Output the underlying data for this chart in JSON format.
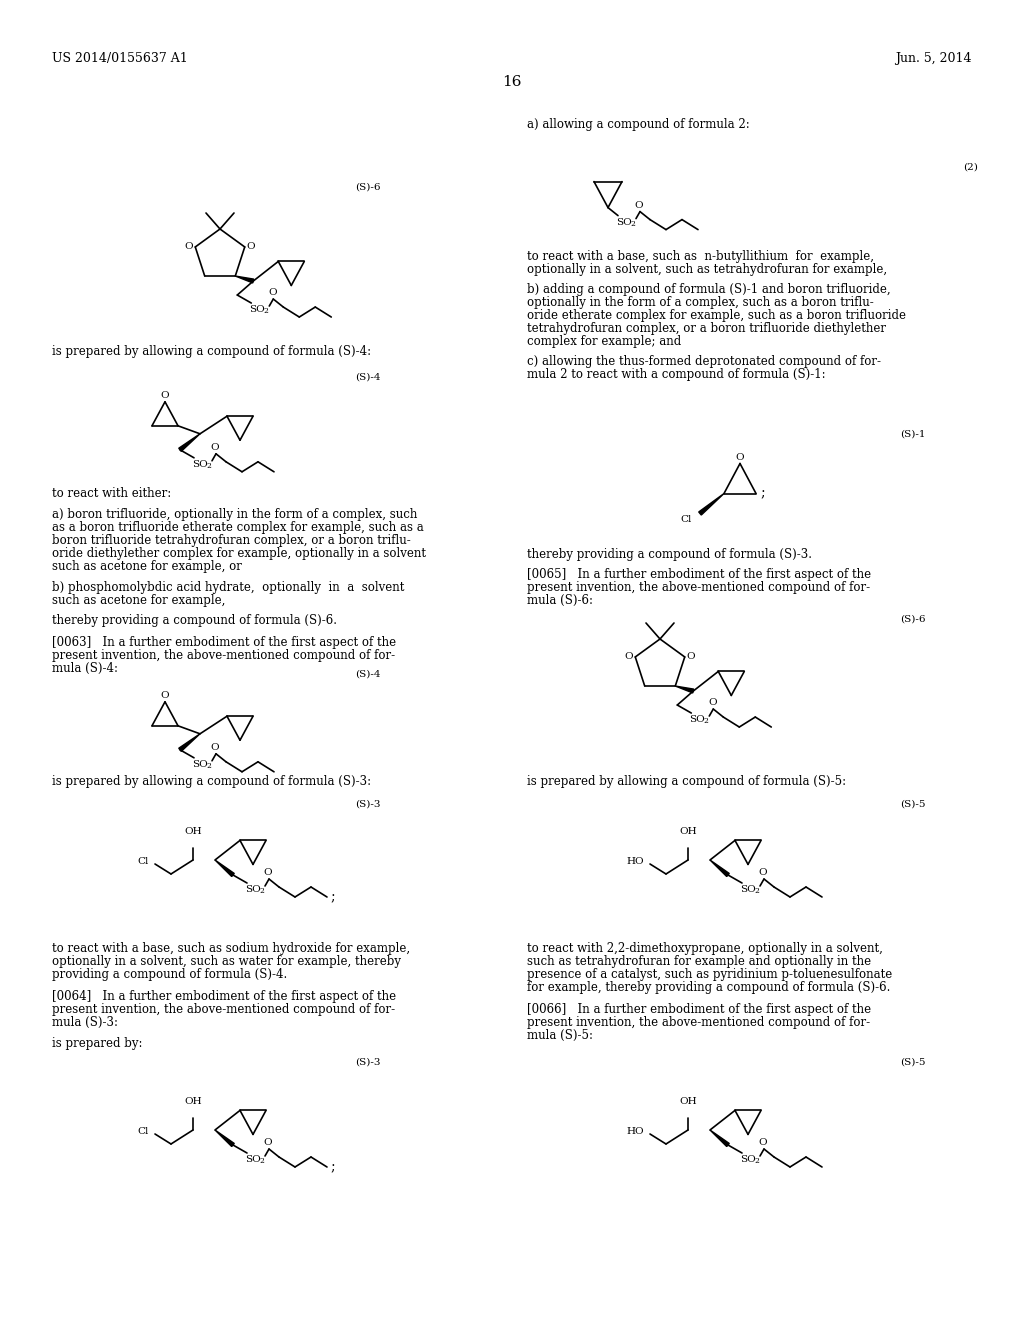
{
  "page_width": 10.24,
  "page_height": 13.2,
  "bg_color": "#ffffff",
  "header_left": "US 2014/0155637 A1",
  "header_right": "Jun. 5, 2014",
  "page_number": "16"
}
